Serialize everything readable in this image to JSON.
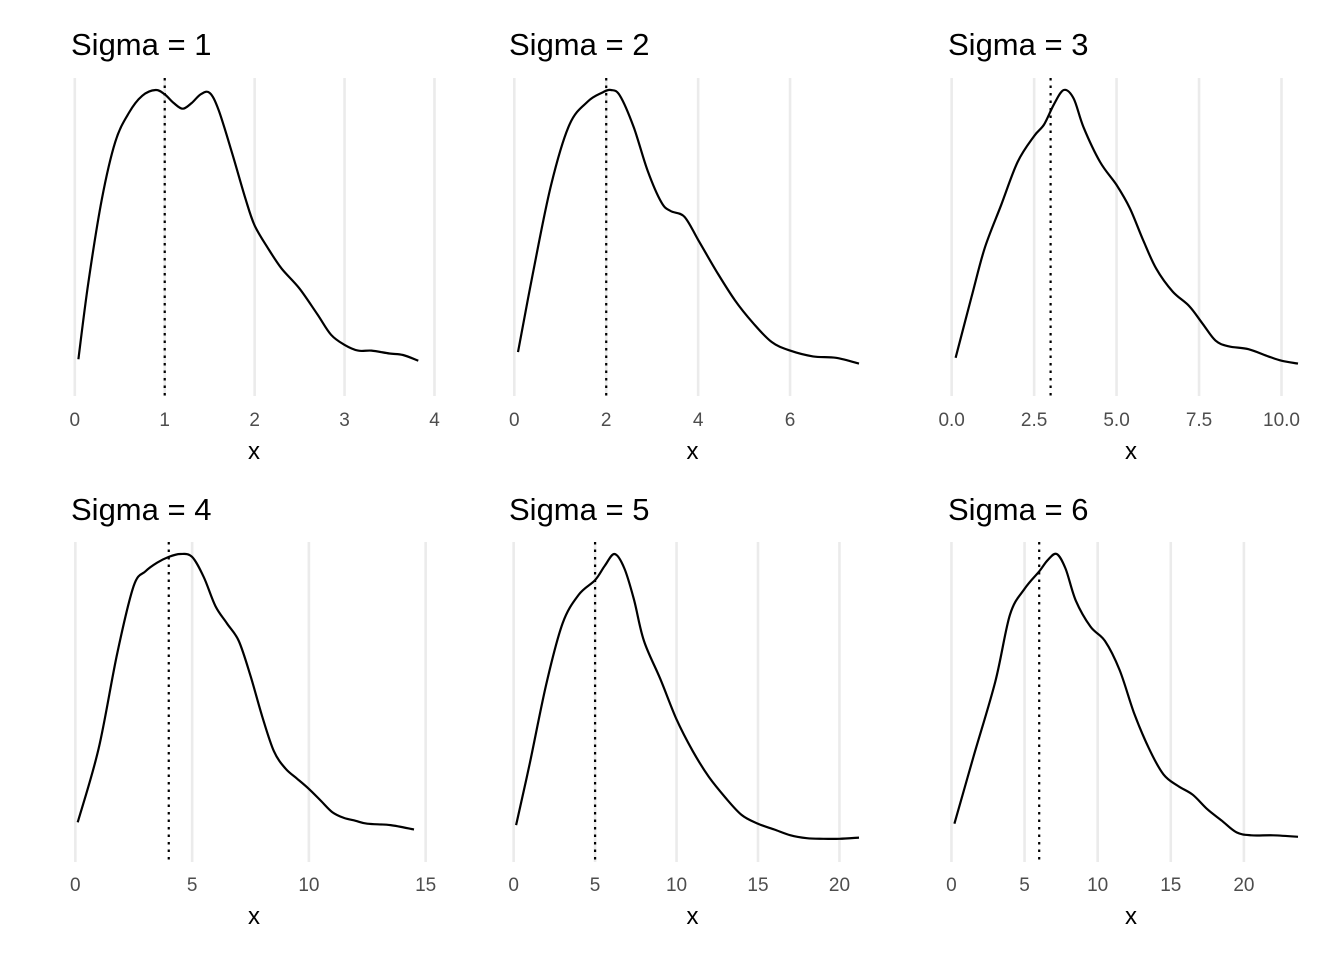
{
  "chart_data": [
    {
      "type": "line",
      "title": "Sigma = 1",
      "xlabel": "x",
      "ylabel": "",
      "xlim": [
        -0.02,
        3.85
      ],
      "xticks": [
        0,
        1,
        2,
        3,
        4
      ],
      "xtick_labels": [
        "0",
        "1",
        "2",
        "3",
        "4"
      ],
      "reference_line_x": 1,
      "grid": "vertical major",
      "y_axis_labels": "none",
      "series": [
        {
          "x": [
            0.04,
            0.15,
            0.3,
            0.45,
            0.6,
            0.75,
            0.9,
            1.0,
            1.1,
            1.2,
            1.3,
            1.4,
            1.5,
            1.6,
            1.75,
            1.9,
            2.0,
            2.15,
            2.3,
            2.5,
            2.7,
            2.85,
            3.0,
            3.15,
            3.3,
            3.5,
            3.65,
            3.82
          ],
          "y": [
            0.065,
            0.33,
            0.62,
            0.82,
            0.92,
            0.98,
            1.0,
            0.985,
            0.955,
            0.935,
            0.955,
            0.985,
            0.99,
            0.93,
            0.78,
            0.62,
            0.53,
            0.45,
            0.38,
            0.31,
            0.22,
            0.15,
            0.115,
            0.095,
            0.095,
            0.085,
            0.08,
            0.06
          ]
        }
      ]
    },
    {
      "type": "line",
      "title": "Sigma = 2",
      "xlabel": "x",
      "ylabel": "",
      "xlim": [
        -0.05,
        7.5
      ],
      "xticks": [
        0,
        2,
        4,
        6
      ],
      "xtick_labels": [
        "0",
        "2",
        "4",
        "6"
      ],
      "reference_line_x": 2,
      "grid": "vertical major",
      "y_axis_labels": "none",
      "series": [
        {
          "x": [
            0.08,
            0.4,
            0.8,
            1.2,
            1.6,
            1.9,
            2.1,
            2.3,
            2.6,
            2.9,
            3.2,
            3.4,
            3.7,
            4.0,
            4.4,
            4.8,
            5.2,
            5.6,
            6.0,
            6.5,
            7.0,
            7.5
          ],
          "y": [
            0.09,
            0.36,
            0.67,
            0.88,
            0.96,
            0.99,
            1.0,
            0.98,
            0.87,
            0.72,
            0.61,
            0.58,
            0.56,
            0.48,
            0.37,
            0.27,
            0.19,
            0.125,
            0.095,
            0.075,
            0.07,
            0.05
          ]
        }
      ]
    },
    {
      "type": "line",
      "title": "Sigma = 3",
      "xlabel": "x",
      "ylabel": "",
      "xlim": [
        -0.05,
        10.5
      ],
      "xticks": [
        0,
        2.5,
        5,
        7.5,
        10
      ],
      "xtick_labels": [
        "0.0",
        "2.5",
        "5.0",
        "7.5",
        "10.0"
      ],
      "reference_line_x": 3,
      "grid": "vertical major",
      "y_axis_labels": "none",
      "series": [
        {
          "x": [
            0.12,
            0.6,
            1.0,
            1.5,
            2.0,
            2.5,
            2.8,
            3.1,
            3.4,
            3.7,
            4.0,
            4.5,
            5.0,
            5.4,
            5.8,
            6.2,
            6.7,
            7.2,
            7.6,
            8.0,
            8.4,
            9.0,
            9.6,
            10.0,
            10.5
          ],
          "y": [
            0.07,
            0.28,
            0.45,
            0.6,
            0.75,
            0.84,
            0.88,
            0.95,
            1.0,
            0.97,
            0.87,
            0.75,
            0.67,
            0.59,
            0.48,
            0.38,
            0.3,
            0.25,
            0.19,
            0.13,
            0.11,
            0.1,
            0.075,
            0.06,
            0.05
          ]
        }
      ]
    },
    {
      "type": "line",
      "title": "Sigma = 4",
      "xlabel": "x",
      "ylabel": "",
      "xlim": [
        -0.1,
        14.8
      ],
      "xticks": [
        0,
        5,
        10,
        15
      ],
      "xtick_labels": [
        "0",
        "5",
        "10",
        "15"
      ],
      "reference_line_x": 4,
      "grid": "vertical major",
      "y_axis_labels": "none",
      "series": [
        {
          "x": [
            0.1,
            1.0,
            1.8,
            2.5,
            3.0,
            3.5,
            4.0,
            4.5,
            5.0,
            5.5,
            6.0,
            6.5,
            7.0,
            7.5,
            8.0,
            8.5,
            9.0,
            9.5,
            10.0,
            10.5,
            11.0,
            11.5,
            12.0,
            12.5,
            13.5,
            14.5
          ],
          "y": [
            0.075,
            0.33,
            0.66,
            0.89,
            0.94,
            0.97,
            0.99,
            1.0,
            0.99,
            0.92,
            0.82,
            0.76,
            0.7,
            0.58,
            0.44,
            0.32,
            0.26,
            0.225,
            0.19,
            0.15,
            0.11,
            0.09,
            0.08,
            0.07,
            0.065,
            0.05
          ]
        }
      ]
    },
    {
      "type": "line",
      "title": "Sigma = 5",
      "xlabel": "x",
      "ylabel": "",
      "xlim": [
        -0.1,
        21.2
      ],
      "xticks": [
        0,
        5,
        10,
        15,
        20
      ],
      "xtick_labels": [
        "0",
        "5",
        "10",
        "15",
        "20"
      ],
      "reference_line_x": 5,
      "grid": "vertical major",
      "y_axis_labels": "none",
      "series": [
        {
          "x": [
            0.15,
            1.0,
            2.0,
            3.0,
            4.0,
            5.0,
            5.6,
            6.2,
            6.8,
            7.4,
            8.0,
            9.0,
            10.0,
            11.0,
            12.0,
            13.0,
            14.0,
            15.0,
            16.0,
            17.0,
            18.0,
            19.0,
            20.0,
            21.2
          ],
          "y": [
            0.065,
            0.28,
            0.55,
            0.76,
            0.86,
            0.91,
            0.96,
            1.0,
            0.95,
            0.84,
            0.7,
            0.57,
            0.43,
            0.32,
            0.23,
            0.16,
            0.1,
            0.07,
            0.05,
            0.03,
            0.02,
            0.018,
            0.018,
            0.022
          ]
        }
      ]
    },
    {
      "type": "line",
      "title": "Sigma = 6",
      "xlabel": "x",
      "ylabel": "",
      "xlim": [
        -0.1,
        23.7
      ],
      "xticks": [
        0,
        5,
        10,
        15,
        20
      ],
      "xtick_labels": [
        "0",
        "5",
        "10",
        "15",
        "20"
      ],
      "reference_line_x": 6,
      "grid": "vertical major",
      "y_axis_labels": "none",
      "series": [
        {
          "x": [
            0.2,
            1.5,
            3.0,
            4.0,
            5.0,
            6.0,
            6.6,
            7.2,
            7.8,
            8.5,
            9.5,
            10.5,
            11.5,
            12.5,
            13.5,
            14.5,
            15.5,
            16.5,
            17.5,
            18.5,
            19.5,
            20.5,
            22.0,
            23.7
          ],
          "y": [
            0.07,
            0.3,
            0.56,
            0.79,
            0.88,
            0.94,
            0.98,
            1.0,
            0.95,
            0.84,
            0.75,
            0.7,
            0.6,
            0.45,
            0.33,
            0.24,
            0.2,
            0.17,
            0.12,
            0.08,
            0.04,
            0.03,
            0.03,
            0.025
          ]
        }
      ]
    }
  ]
}
